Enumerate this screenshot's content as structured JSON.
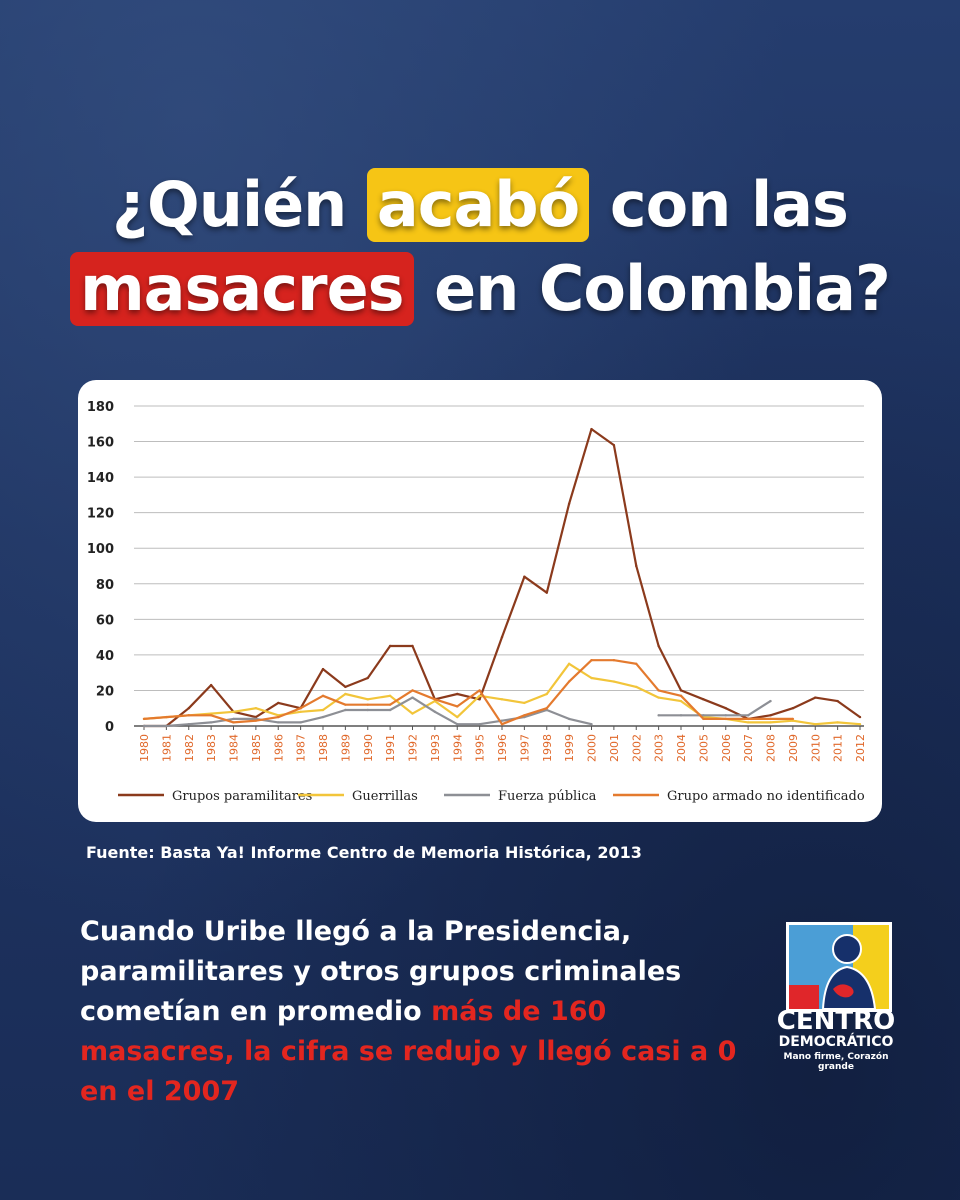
{
  "headline": {
    "line1_pre": "¿Quién",
    "line1_highlight": "acabó",
    "line1_post": "con las",
    "line2_highlight": "masacres",
    "line2_post": "en Colombia?"
  },
  "chart_data": {
    "type": "line",
    "x": [
      "1980",
      "1981",
      "1982",
      "1983",
      "1984",
      "1985",
      "1986",
      "1987",
      "1988",
      "1989",
      "1990",
      "1991",
      "1992",
      "1993",
      "1994",
      "1995",
      "1996",
      "1997",
      "1998",
      "1999",
      "2000",
      "2001",
      "2002",
      "2003",
      "2004",
      "2005",
      "2006",
      "2007",
      "2008",
      "2009",
      "2010",
      "2011",
      "2012"
    ],
    "ylim": [
      0,
      180
    ],
    "yticks": [
      "0",
      "20",
      "40",
      "60",
      "80",
      "100",
      "120",
      "140",
      "160",
      "180"
    ],
    "grid": true,
    "legend_position": "bottom",
    "series": [
      {
        "name": "Grupos paramilitares",
        "color": "#8b3a1c",
        "values": [
          0,
          0,
          10,
          23,
          8,
          5,
          13,
          10,
          32,
          22,
          27,
          45,
          45,
          15,
          18,
          15,
          50,
          84,
          75,
          125,
          167,
          158,
          90,
          45,
          20,
          15,
          10,
          4,
          6,
          10,
          16,
          14,
          5
        ]
      },
      {
        "name": "Guerrillas",
        "color": "#f2c53a",
        "values": [
          4,
          5,
          6,
          7,
          8,
          10,
          6,
          8,
          9,
          18,
          15,
          17,
          7,
          14,
          5,
          17,
          15,
          13,
          18,
          35,
          27,
          25,
          22,
          16,
          14,
          5,
          4,
          2,
          2,
          3,
          1,
          2,
          1
        ]
      },
      {
        "name": "Fuerza pública",
        "color": "#8d8f95",
        "values": [
          0,
          0,
          1,
          2,
          4,
          4,
          2,
          2,
          5,
          9,
          9,
          9,
          16,
          8,
          1,
          1,
          3,
          5,
          9,
          4,
          1,
          null,
          null,
          6,
          6,
          6,
          6,
          6,
          14,
          null,
          null,
          null,
          null
        ]
      },
      {
        "name": "Grupo armado no identificado",
        "color": "#e47a2e",
        "values": [
          4,
          5,
          6,
          6,
          2,
          3,
          5,
          10,
          17,
          12,
          12,
          12,
          20,
          15,
          11,
          20,
          1,
          6,
          10,
          25,
          37,
          37,
          35,
          20,
          17,
          4,
          4,
          4,
          4,
          4,
          null,
          null,
          null
        ]
      }
    ]
  },
  "source_text": "Fuente: Basta Ya! Informe Centro de Memoria Histórica, 2013",
  "body": {
    "white": "Cuando Uribe llegó a la Presidencia, paramilitares y otros grupos criminales cometían en promedio ",
    "red": "más de 160 masacres, la cifra se redujo y llegó casi a 0 en el 2007"
  },
  "logo": {
    "line1": "CENTRO",
    "line2": "DEMOCRÁTICO",
    "tagline": "Mano firme, Corazón grande"
  },
  "colors": {
    "background": "#1f3461",
    "highlight_yellow": "#f6c515",
    "highlight_red": "#d6231e",
    "emphasis_red": "#e3261f"
  }
}
